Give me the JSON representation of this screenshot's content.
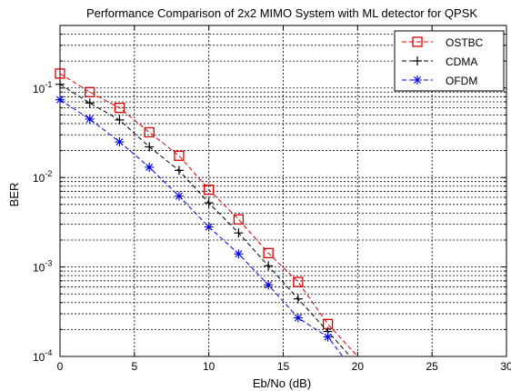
{
  "chart_data": {
    "type": "line",
    "title": "Performance Comparison of 2x2 MIMO System with ML detector for QPSK",
    "xlabel": "Eb/No (dB)",
    "ylabel": "BER",
    "xlim": [
      0,
      30
    ],
    "ylim": [
      0.0001,
      0.5
    ],
    "yscale": "log",
    "grid": true,
    "legend_position": "top-right",
    "x_ticks": [
      "0",
      "5",
      "10",
      "15",
      "20",
      "25",
      "30"
    ],
    "y_ticks": [
      {
        "base": "10",
        "exp": "-1",
        "value": 0.1
      },
      {
        "base": "10",
        "exp": "-2",
        "value": 0.01
      },
      {
        "base": "10",
        "exp": "-3",
        "value": 0.001
      },
      {
        "base": "10",
        "exp": "-4",
        "value": 0.0001
      }
    ],
    "series": [
      {
        "name": "OSTBC",
        "color": "#dd0000",
        "marker": "square",
        "x": [
          0,
          2,
          4,
          6,
          8,
          10,
          12,
          14,
          16,
          18,
          20
        ],
        "y": [
          0.145,
          0.09,
          0.06,
          0.032,
          0.0175,
          0.0073,
          0.0034,
          0.00143,
          0.00068,
          0.00023,
          0.0001
        ]
      },
      {
        "name": "CDMA",
        "color": "#000000",
        "marker": "plus",
        "x": [
          0,
          2,
          4,
          6,
          8,
          10,
          12,
          14,
          16,
          18,
          19.5
        ],
        "y": [
          0.11,
          0.068,
          0.044,
          0.022,
          0.012,
          0.0052,
          0.0024,
          0.00103,
          0.00044,
          0.00019,
          0.0001
        ]
      },
      {
        "name": "OFDM",
        "color": "#0000dd",
        "marker": "asterisk",
        "x": [
          0,
          2,
          4,
          6,
          8,
          10,
          12,
          14,
          16,
          18,
          19
        ],
        "y": [
          0.074,
          0.045,
          0.025,
          0.013,
          0.0062,
          0.0028,
          0.0014,
          0.00063,
          0.00027,
          0.000165,
          0.0001
        ]
      }
    ]
  }
}
